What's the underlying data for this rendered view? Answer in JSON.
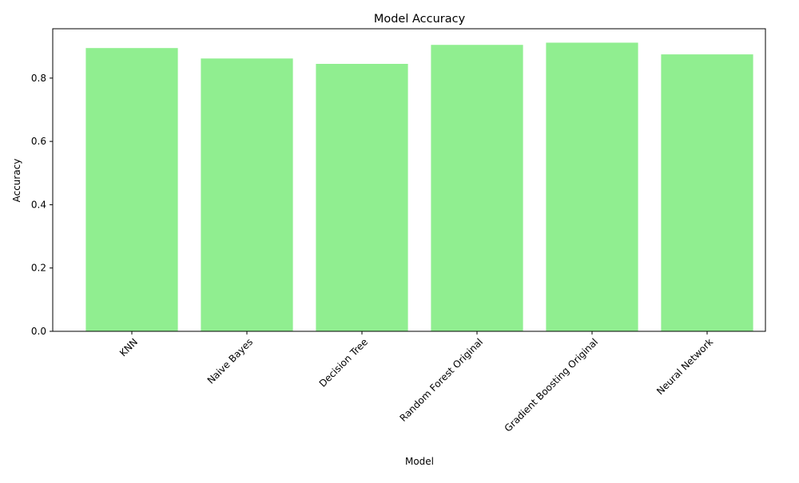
{
  "chart_data": {
    "type": "bar",
    "title": "Model Accuracy",
    "xlabel": "Model",
    "ylabel": "Accuracy",
    "categories": [
      "KNN",
      "Naive Bayes",
      "Decision Tree",
      "Random Forest Original",
      "Gradient Boosting Original",
      "Neural Network"
    ],
    "values": [
      0.895,
      0.862,
      0.845,
      0.905,
      0.912,
      0.875
    ],
    "ylim": [
      0,
      0.956
    ],
    "yticks": [
      0.0,
      0.2,
      0.4,
      0.6,
      0.8
    ],
    "ytick_labels": [
      "0.0",
      "0.2",
      "0.4",
      "0.6",
      "0.8"
    ],
    "x_tick_rotation_deg": 45,
    "grid": false,
    "legend": "none",
    "bar_color": "#90ee90"
  }
}
